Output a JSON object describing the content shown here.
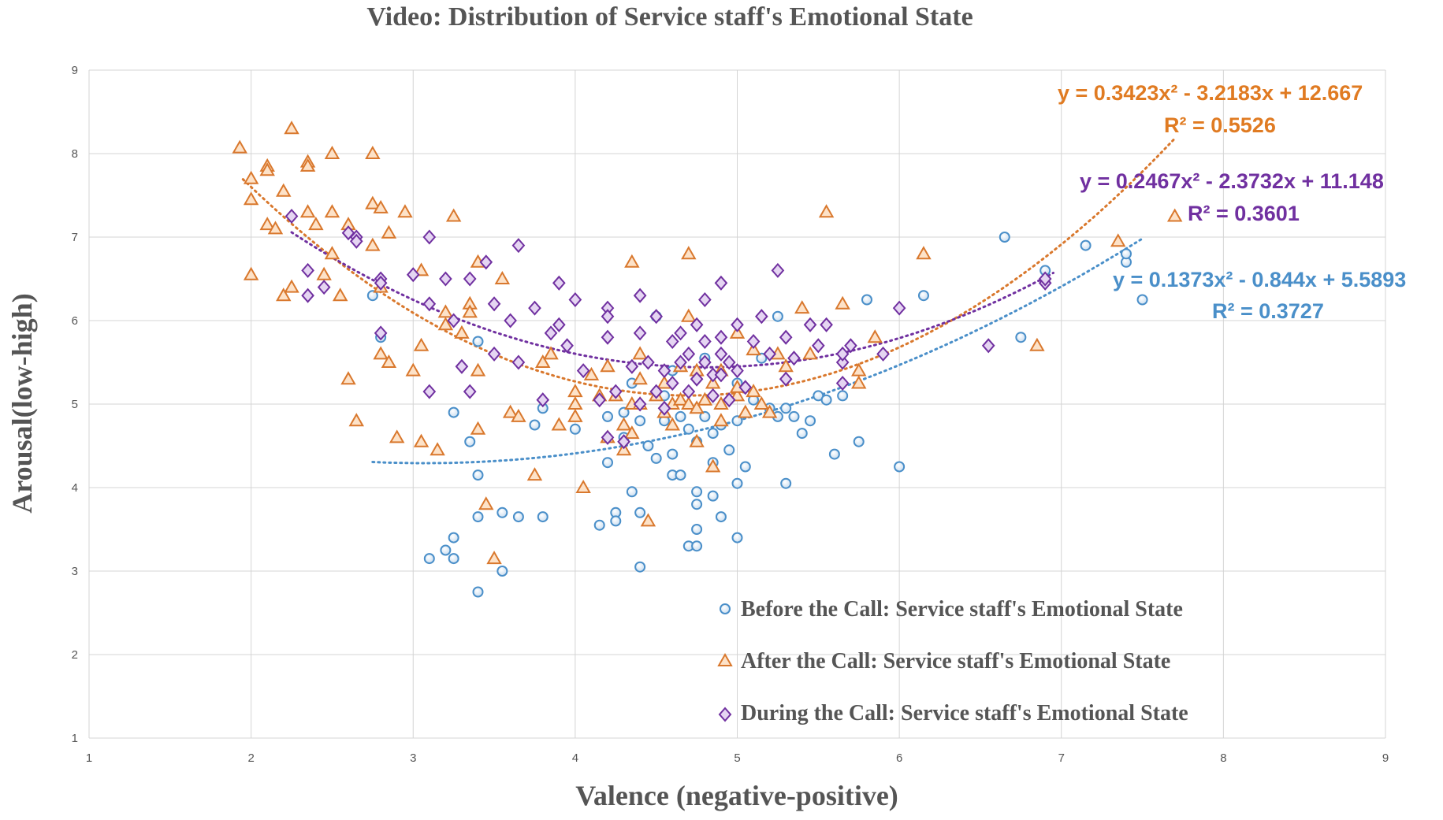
{
  "chart_data": {
    "type": "scatter",
    "title": "Video: Distribution of Service staff's Emotional State",
    "xlabel": "Valence (negative-positive)",
    "ylabel": "Arousal(low-high)",
    "xlim": [
      1,
      9
    ],
    "ylim": [
      1,
      9
    ],
    "xticks": [
      "1",
      "2",
      "3",
      "4",
      "5",
      "6",
      "7",
      "8",
      "9"
    ],
    "yticks": [
      "1",
      "2",
      "3",
      "4",
      "5",
      "6",
      "7",
      "8",
      "9"
    ],
    "grid": true,
    "legend_position": "bottom-right",
    "series": [
      {
        "name": "Before the Call: Service staff's Emotional State",
        "marker": "circle",
        "color": "#4a8fc9",
        "trendline": {
          "coefficients": [
            0.1373,
            -0.844,
            5.5893
          ],
          "x_range": [
            2.75,
            7.5
          ],
          "equation": "y = 0.1373x² - 0.844x + 5.5893",
          "r2": "R² = 0.3727"
        },
        "points": [
          [
            2.75,
            6.3
          ],
          [
            2.8,
            5.8
          ],
          [
            3.1,
            3.15
          ],
          [
            3.2,
            3.25
          ],
          [
            3.25,
            3.15
          ],
          [
            3.25,
            3.4
          ],
          [
            3.25,
            4.9
          ],
          [
            3.35,
            4.55
          ],
          [
            3.4,
            4.15
          ],
          [
            3.4,
            3.65
          ],
          [
            3.4,
            2.75
          ],
          [
            3.4,
            5.75
          ],
          [
            3.55,
            3.7
          ],
          [
            3.55,
            3.0
          ],
          [
            3.65,
            3.65
          ],
          [
            3.75,
            4.75
          ],
          [
            3.8,
            4.95
          ],
          [
            3.8,
            3.65
          ],
          [
            4.0,
            4.7
          ],
          [
            4.15,
            3.55
          ],
          [
            4.2,
            4.85
          ],
          [
            4.2,
            4.3
          ],
          [
            4.25,
            3.7
          ],
          [
            4.25,
            3.6
          ],
          [
            4.3,
            4.6
          ],
          [
            4.3,
            4.9
          ],
          [
            4.35,
            3.95
          ],
          [
            4.35,
            5.25
          ],
          [
            4.4,
            4.8
          ],
          [
            4.4,
            3.05
          ],
          [
            4.4,
            3.7
          ],
          [
            4.45,
            4.5
          ],
          [
            4.5,
            4.35
          ],
          [
            4.5,
            6.05
          ],
          [
            4.55,
            5.1
          ],
          [
            4.55,
            4.8
          ],
          [
            4.6,
            4.15
          ],
          [
            4.6,
            4.4
          ],
          [
            4.6,
            5.4
          ],
          [
            4.65,
            4.85
          ],
          [
            4.65,
            4.15
          ],
          [
            4.7,
            3.3
          ],
          [
            4.7,
            4.7
          ],
          [
            4.75,
            3.8
          ],
          [
            4.75,
            3.95
          ],
          [
            4.75,
            3.3
          ],
          [
            4.75,
            3.5
          ],
          [
            4.75,
            4.55
          ],
          [
            4.8,
            4.85
          ],
          [
            4.8,
            5.55
          ],
          [
            4.85,
            3.9
          ],
          [
            4.85,
            4.3
          ],
          [
            4.85,
            4.65
          ],
          [
            4.9,
            3.65
          ],
          [
            4.9,
            4.75
          ],
          [
            4.95,
            4.45
          ],
          [
            5.0,
            3.4
          ],
          [
            5.0,
            4.05
          ],
          [
            5.0,
            4.8
          ],
          [
            5.0,
            5.25
          ],
          [
            5.05,
            4.25
          ],
          [
            5.1,
            5.05
          ],
          [
            5.15,
            5.55
          ],
          [
            5.2,
            4.95
          ],
          [
            5.25,
            4.85
          ],
          [
            5.25,
            6.05
          ],
          [
            5.3,
            4.95
          ],
          [
            5.3,
            4.05
          ],
          [
            5.35,
            4.85
          ],
          [
            5.4,
            4.65
          ],
          [
            5.45,
            4.8
          ],
          [
            5.5,
            5.1
          ],
          [
            5.55,
            5.05
          ],
          [
            5.6,
            4.4
          ],
          [
            5.65,
            5.1
          ],
          [
            5.75,
            4.55
          ],
          [
            5.8,
            6.25
          ],
          [
            6.0,
            4.25
          ],
          [
            6.15,
            6.3
          ],
          [
            6.65,
            7.0
          ],
          [
            6.75,
            5.8
          ],
          [
            6.9,
            6.6
          ],
          [
            7.15,
            6.9
          ],
          [
            7.4,
            6.7
          ],
          [
            7.4,
            6.8
          ],
          [
            7.5,
            6.25
          ]
        ]
      },
      {
        "name": "After the Call: Service staff's Emotional State",
        "marker": "triangle",
        "color": "#d9782d",
        "trendline": {
          "coefficients": [
            0.3423,
            -3.2183,
            12.667
          ],
          "x_range": [
            1.95,
            7.7
          ],
          "equation": "y = 0.3423x² - 3.2183x + 12.667",
          "r2": "R² = 0.5526"
        },
        "points": [
          [
            1.93,
            8.07
          ],
          [
            2.0,
            7.7
          ],
          [
            2.0,
            7.45
          ],
          [
            2.0,
            6.55
          ],
          [
            2.1,
            7.85
          ],
          [
            2.1,
            7.8
          ],
          [
            2.1,
            7.15
          ],
          [
            2.15,
            7.1
          ],
          [
            2.2,
            7.55
          ],
          [
            2.2,
            6.3
          ],
          [
            2.25,
            8.3
          ],
          [
            2.25,
            6.4
          ],
          [
            2.35,
            7.9
          ],
          [
            2.35,
            7.85
          ],
          [
            2.35,
            7.3
          ],
          [
            2.4,
            7.15
          ],
          [
            2.45,
            6.55
          ],
          [
            2.5,
            8.0
          ],
          [
            2.5,
            7.3
          ],
          [
            2.5,
            6.8
          ],
          [
            2.55,
            6.3
          ],
          [
            2.6,
            7.15
          ],
          [
            2.6,
            5.3
          ],
          [
            2.65,
            4.8
          ],
          [
            2.75,
            8.0
          ],
          [
            2.75,
            7.4
          ],
          [
            2.75,
            6.9
          ],
          [
            2.8,
            7.35
          ],
          [
            2.8,
            6.4
          ],
          [
            2.8,
            5.6
          ],
          [
            2.85,
            7.05
          ],
          [
            2.85,
            5.5
          ],
          [
            2.9,
            4.6
          ],
          [
            2.95,
            7.3
          ],
          [
            3.0,
            5.4
          ],
          [
            3.05,
            6.6
          ],
          [
            3.05,
            5.7
          ],
          [
            3.05,
            4.55
          ],
          [
            3.15,
            4.45
          ],
          [
            3.2,
            6.1
          ],
          [
            3.2,
            5.95
          ],
          [
            3.25,
            7.25
          ],
          [
            3.3,
            5.85
          ],
          [
            3.35,
            6.2
          ],
          [
            3.35,
            6.1
          ],
          [
            3.4,
            6.7
          ],
          [
            3.4,
            5.4
          ],
          [
            3.4,
            4.7
          ],
          [
            3.45,
            3.8
          ],
          [
            3.5,
            3.15
          ],
          [
            3.55,
            6.5
          ],
          [
            3.6,
            4.9
          ],
          [
            3.65,
            4.85
          ],
          [
            3.75,
            4.15
          ],
          [
            3.8,
            5.5
          ],
          [
            3.85,
            5.6
          ],
          [
            3.9,
            4.75
          ],
          [
            4.0,
            5.15
          ],
          [
            4.0,
            5.0
          ],
          [
            4.0,
            4.85
          ],
          [
            4.05,
            4.0
          ],
          [
            4.1,
            5.35
          ],
          [
            4.15,
            5.1
          ],
          [
            4.2,
            5.45
          ],
          [
            4.2,
            4.6
          ],
          [
            4.25,
            5.1
          ],
          [
            4.3,
            4.45
          ],
          [
            4.3,
            4.75
          ],
          [
            4.35,
            6.7
          ],
          [
            4.35,
            5.0
          ],
          [
            4.35,
            4.65
          ],
          [
            4.4,
            5.3
          ],
          [
            4.4,
            5.6
          ],
          [
            4.4,
            5.0
          ],
          [
            4.45,
            3.6
          ],
          [
            4.5,
            5.1
          ],
          [
            4.55,
            4.9
          ],
          [
            4.55,
            5.25
          ],
          [
            4.6,
            5.0
          ],
          [
            4.6,
            4.75
          ],
          [
            4.65,
            5.45
          ],
          [
            4.65,
            5.05
          ],
          [
            4.7,
            6.8
          ],
          [
            4.7,
            6.05
          ],
          [
            4.7,
            5.0
          ],
          [
            4.75,
            4.55
          ],
          [
            4.75,
            4.95
          ],
          [
            4.75,
            5.4
          ],
          [
            4.8,
            5.05
          ],
          [
            4.85,
            5.25
          ],
          [
            4.85,
            4.25
          ],
          [
            4.9,
            5.4
          ],
          [
            4.9,
            5.0
          ],
          [
            4.9,
            4.8
          ],
          [
            5.0,
            5.85
          ],
          [
            5.0,
            5.1
          ],
          [
            5.0,
            5.2
          ],
          [
            5.05,
            4.9
          ],
          [
            5.1,
            5.65
          ],
          [
            5.1,
            5.15
          ],
          [
            5.15,
            5.0
          ],
          [
            5.2,
            4.9
          ],
          [
            5.25,
            5.6
          ],
          [
            5.3,
            5.45
          ],
          [
            5.4,
            6.15
          ],
          [
            5.45,
            5.6
          ],
          [
            5.55,
            7.3
          ],
          [
            5.65,
            6.2
          ],
          [
            5.75,
            5.4
          ],
          [
            5.75,
            5.25
          ],
          [
            5.85,
            5.8
          ],
          [
            6.15,
            6.8
          ],
          [
            6.85,
            5.7
          ],
          [
            7.35,
            6.95
          ],
          [
            7.7,
            7.25
          ]
        ]
      },
      {
        "name": "During the Call: Service staff's Emotional State",
        "marker": "diamond",
        "color": "#7030a0",
        "trendline": {
          "coefficients": [
            0.2467,
            -2.3732,
            11.148
          ],
          "x_range": [
            2.25,
            6.95
          ],
          "equation": "y = 0.2467x² - 2.3732x + 11.148",
          "r2": "R² = 0.3601"
        },
        "points": [
          [
            2.25,
            7.25
          ],
          [
            2.35,
            6.6
          ],
          [
            2.35,
            6.3
          ],
          [
            2.45,
            6.4
          ],
          [
            2.6,
            7.05
          ],
          [
            2.65,
            7.0
          ],
          [
            2.65,
            6.95
          ],
          [
            2.8,
            6.5
          ],
          [
            2.8,
            6.45
          ],
          [
            2.8,
            5.85
          ],
          [
            3.0,
            6.55
          ],
          [
            3.1,
            7.0
          ],
          [
            3.1,
            6.2
          ],
          [
            3.1,
            5.15
          ],
          [
            3.2,
            6.5
          ],
          [
            3.25,
            6.0
          ],
          [
            3.3,
            5.45
          ],
          [
            3.35,
            5.15
          ],
          [
            3.35,
            6.5
          ],
          [
            3.45,
            6.7
          ],
          [
            3.5,
            6.2
          ],
          [
            3.5,
            5.6
          ],
          [
            3.6,
            6.0
          ],
          [
            3.65,
            6.9
          ],
          [
            3.65,
            5.5
          ],
          [
            3.75,
            6.15
          ],
          [
            3.8,
            5.05
          ],
          [
            3.85,
            5.85
          ],
          [
            3.9,
            6.45
          ],
          [
            3.9,
            5.95
          ],
          [
            3.95,
            5.7
          ],
          [
            4.0,
            6.25
          ],
          [
            4.05,
            5.4
          ],
          [
            4.15,
            5.05
          ],
          [
            4.2,
            6.15
          ],
          [
            4.2,
            6.05
          ],
          [
            4.2,
            5.8
          ],
          [
            4.2,
            4.6
          ],
          [
            4.25,
            5.15
          ],
          [
            4.3,
            4.55
          ],
          [
            4.35,
            5.45
          ],
          [
            4.4,
            6.3
          ],
          [
            4.4,
            5.85
          ],
          [
            4.4,
            5.0
          ],
          [
            4.45,
            5.5
          ],
          [
            4.5,
            6.05
          ],
          [
            4.5,
            5.15
          ],
          [
            4.55,
            4.95
          ],
          [
            4.55,
            5.4
          ],
          [
            4.6,
            5.75
          ],
          [
            4.6,
            5.25
          ],
          [
            4.65,
            5.5
          ],
          [
            4.65,
            5.85
          ],
          [
            4.7,
            5.6
          ],
          [
            4.7,
            5.15
          ],
          [
            4.75,
            5.95
          ],
          [
            4.75,
            5.3
          ],
          [
            4.8,
            6.25
          ],
          [
            4.8,
            5.75
          ],
          [
            4.8,
            5.5
          ],
          [
            4.85,
            5.1
          ],
          [
            4.85,
            5.35
          ],
          [
            4.9,
            6.45
          ],
          [
            4.9,
            5.8
          ],
          [
            4.9,
            5.6
          ],
          [
            4.9,
            5.35
          ],
          [
            4.95,
            5.5
          ],
          [
            4.95,
            5.05
          ],
          [
            5.0,
            5.95
          ],
          [
            5.0,
            5.4
          ],
          [
            5.05,
            5.2
          ],
          [
            5.1,
            5.75
          ],
          [
            5.15,
            6.05
          ],
          [
            5.2,
            5.6
          ],
          [
            5.25,
            6.6
          ],
          [
            5.3,
            5.8
          ],
          [
            5.3,
            5.3
          ],
          [
            5.35,
            5.55
          ],
          [
            5.45,
            5.95
          ],
          [
            5.5,
            5.7
          ],
          [
            5.55,
            5.95
          ],
          [
            5.65,
            5.5
          ],
          [
            5.65,
            5.6
          ],
          [
            5.65,
            5.25
          ],
          [
            5.7,
            5.7
          ],
          [
            5.9,
            5.6
          ],
          [
            6.0,
            6.15
          ],
          [
            6.55,
            5.7
          ],
          [
            6.9,
            6.45
          ],
          [
            6.9,
            6.5
          ]
        ]
      }
    ]
  }
}
